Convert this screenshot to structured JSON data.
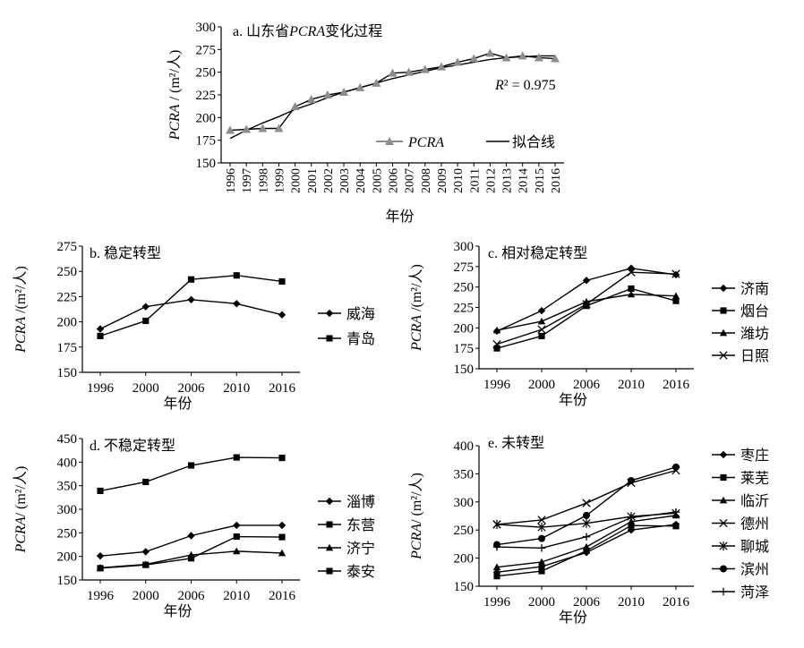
{
  "chart_data": [
    {
      "id": "a",
      "type": "line",
      "title_prefix": "a. 山东省",
      "title_em": "PCRA",
      "title_suffix": "变化过程",
      "ylabel_em": "PCRA",
      "ylabel_rest": " / (m²/人)",
      "xlabel": "年份",
      "ylim": [
        150,
        300
      ],
      "yticks": [
        150,
        175,
        200,
        225,
        250,
        275,
        300
      ],
      "categories": [
        "1996",
        "1997",
        "1998",
        "1999",
        "2000",
        "2001",
        "2002",
        "2003",
        "2004",
        "2005",
        "2006",
        "2007",
        "2008",
        "2009",
        "2010",
        "2011",
        "2012",
        "2013",
        "2014",
        "2015",
        "2016"
      ],
      "series": [
        {
          "name": "PCRA",
          "marker": "triangle",
          "values": [
            186,
            187,
            188,
            188,
            212,
            220,
            225,
            228,
            233,
            238,
            249,
            250,
            253,
            256,
            261,
            265,
            271,
            266,
            268,
            266,
            265
          ]
        }
      ],
      "fit": {
        "name": "拟合线",
        "values": [
          177,
          186,
          194,
          201,
          209,
          215,
          222,
          228,
          233,
          238,
          243,
          247,
          251,
          255,
          258,
          261,
          264,
          266,
          267,
          268,
          268
        ]
      },
      "annotation_em": "R",
      "annotation_rest": "² = 0.975",
      "legend": "inside-bottom-right"
    },
    {
      "id": "b",
      "type": "line",
      "title": "b. 稳定转型",
      "ylabel_em": "PCRA",
      "ylabel_rest": " /(m²/人)",
      "xlabel": "年份",
      "ylim": [
        150,
        275
      ],
      "yticks": [
        150,
        175,
        200,
        225,
        250,
        275
      ],
      "categories": [
        "1996",
        "2000",
        "2006",
        "2010",
        "2016"
      ],
      "series": [
        {
          "name": "威海",
          "marker": "diamond",
          "values": [
            193,
            215,
            222,
            218,
            207
          ]
        },
        {
          "name": "青岛",
          "marker": "square",
          "values": [
            186,
            201,
            242,
            246,
            240
          ]
        }
      ],
      "legend": "right"
    },
    {
      "id": "c",
      "type": "line",
      "title": "c. 相对稳定转型",
      "ylabel_em": "PCRA",
      "ylabel_rest": " /(m²/人)",
      "xlabel": "年份",
      "ylim": [
        150,
        300
      ],
      "yticks": [
        150,
        175,
        200,
        225,
        250,
        275,
        300
      ],
      "categories": [
        "1996",
        "2000",
        "2006",
        "2010",
        "2016"
      ],
      "series": [
        {
          "name": "济南",
          "marker": "diamond",
          "values": [
            196,
            221,
            258,
            273,
            265
          ]
        },
        {
          "name": "烟台",
          "marker": "square",
          "values": [
            175,
            190,
            227,
            248,
            233
          ]
        },
        {
          "name": "潍坊",
          "marker": "triangle",
          "values": [
            197,
            208,
            232,
            241,
            239
          ]
        },
        {
          "name": "日照",
          "marker": "x",
          "values": [
            180,
            198,
            229,
            268,
            266
          ]
        }
      ],
      "legend": "right"
    },
    {
      "id": "d",
      "type": "line",
      "title": "d. 不稳定转型",
      "ylabel_em": "PCRA",
      "ylabel_rest": "/ (m²/人)",
      "xlabel": "年份",
      "ylim": [
        150,
        450
      ],
      "yticks": [
        150,
        200,
        250,
        300,
        350,
        400,
        450
      ],
      "categories": [
        "1996",
        "2000",
        "2006",
        "2010",
        "2016"
      ],
      "series": [
        {
          "name": "淄博",
          "marker": "diamond",
          "values": [
            201,
            210,
            244,
            266,
            266
          ]
        },
        {
          "name": "东营",
          "marker": "square",
          "values": [
            339,
            358,
            393,
            410,
            409
          ]
        },
        {
          "name": "济宁",
          "marker": "triangle",
          "values": [
            176,
            183,
            203,
            211,
            207
          ]
        },
        {
          "name": "泰安",
          "marker": "square",
          "values": [
            175,
            182,
            196,
            242,
            241
          ]
        }
      ],
      "legend": "right"
    },
    {
      "id": "e",
      "type": "line",
      "title": "e. 未转型",
      "ylabel_em": "PCRA",
      "ylabel_rest": "/ (m²/人)",
      "xlabel": "年份",
      "ylim": [
        150,
        400
      ],
      "yticks": [
        150,
        200,
        250,
        300,
        350,
        400
      ],
      "categories": [
        "1996",
        "2000",
        "2006",
        "2010",
        "2016"
      ],
      "series": [
        {
          "name": "枣庄",
          "marker": "diamond",
          "values": [
            175,
            185,
            210,
            250,
            260
          ]
        },
        {
          "name": "莱芜",
          "marker": "square",
          "values": [
            168,
            177,
            213,
            258,
            257
          ]
        },
        {
          "name": "临沂",
          "marker": "triangle",
          "values": [
            184,
            193,
            220,
            265,
            276
          ]
        },
        {
          "name": "德州",
          "marker": "x",
          "values": [
            260,
            268,
            298,
            334,
            356
          ]
        },
        {
          "name": "聊城",
          "marker": "asterisk",
          "values": [
            260,
            255,
            262,
            274,
            280
          ]
        },
        {
          "name": "滨州",
          "marker": "circle",
          "values": [
            224,
            235,
            276,
            338,
            362
          ]
        },
        {
          "name": "菏泽",
          "marker": "plus",
          "values": [
            220,
            218,
            238,
            272,
            282
          ]
        }
      ],
      "legend": "right"
    }
  ]
}
